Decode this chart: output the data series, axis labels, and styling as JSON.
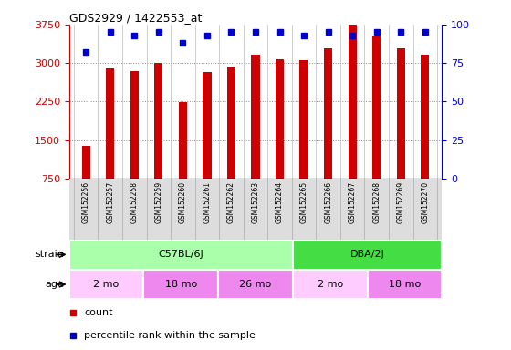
{
  "title": "GDS2929 / 1422553_at",
  "samples": [
    "GSM152256",
    "GSM152257",
    "GSM152258",
    "GSM152259",
    "GSM152260",
    "GSM152261",
    "GSM152262",
    "GSM152263",
    "GSM152264",
    "GSM152265",
    "GSM152266",
    "GSM152267",
    "GSM152268",
    "GSM152269",
    "GSM152270"
  ],
  "counts": [
    1380,
    2900,
    2840,
    3010,
    2240,
    2820,
    2930,
    3160,
    3080,
    3060,
    3290,
    3740,
    3520,
    3290,
    3160
  ],
  "percentile_ranks": [
    82,
    95,
    93,
    95,
    88,
    93,
    95,
    95,
    95,
    93,
    95,
    93,
    95,
    95,
    95
  ],
  "ylim_left": [
    750,
    3750
  ],
  "ylim_right": [
    0,
    100
  ],
  "yticks_left": [
    750,
    1500,
    2250,
    3000,
    3750
  ],
  "yticks_right": [
    0,
    25,
    50,
    75,
    100
  ],
  "bar_color": "#cc0000",
  "dot_color": "#0000cc",
  "strain_groups": [
    {
      "label": "C57BL/6J",
      "start": 0,
      "end": 9,
      "color": "#aaffaa"
    },
    {
      "label": "DBA/2J",
      "start": 9,
      "end": 15,
      "color": "#44dd44"
    }
  ],
  "age_groups": [
    {
      "label": "2 mo",
      "start": 0,
      "end": 3,
      "color": "#ffccff"
    },
    {
      "label": "18 mo",
      "start": 3,
      "end": 6,
      "color": "#ee88ee"
    },
    {
      "label": "26 mo",
      "start": 6,
      "end": 9,
      "color": "#ee88ee"
    },
    {
      "label": "2 mo",
      "start": 9,
      "end": 12,
      "color": "#ffccff"
    },
    {
      "label": "18 mo",
      "start": 12,
      "end": 15,
      "color": "#ee88ee"
    }
  ],
  "legend_count_label": "count",
  "legend_pct_label": "percentile rank within the sample",
  "strain_label": "strain",
  "age_label": "age",
  "background_color": "#ffffff",
  "sample_bg_color": "#dddddd",
  "grid_color": "#888888",
  "bar_width": 0.35
}
